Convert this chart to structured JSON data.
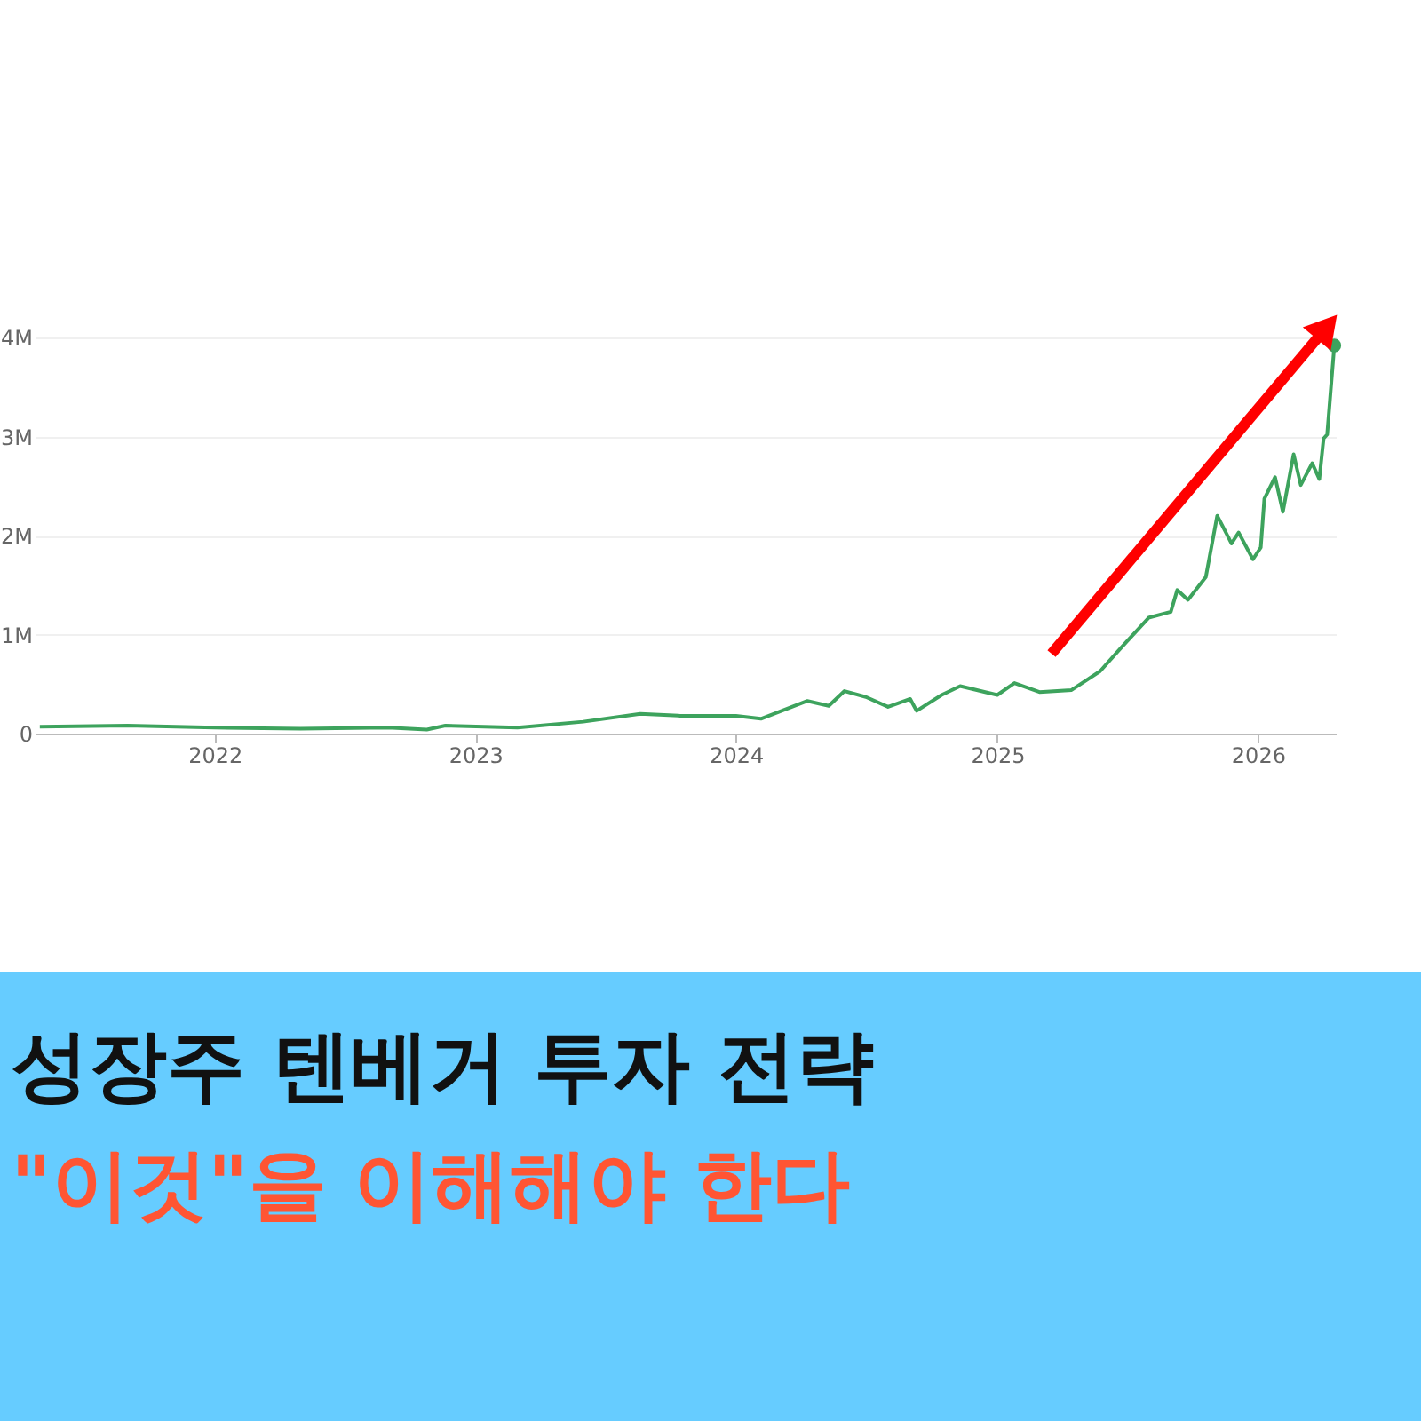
{
  "chart_data": {
    "type": "line",
    "title": "성장주 텐베거 투자 전략",
    "subtitle": "\"이것\"을 이해해야 한다",
    "xlim": [
      "2021-04-25",
      "2026-04-20"
    ],
    "xticks": [
      "2022",
      "2023",
      "2024",
      "2025",
      "2026"
    ],
    "ylim": [
      0,
      4000000
    ],
    "yticks": [
      0,
      {
        "value": 1000000,
        "label": "1M"
      },
      {
        "value": 2000000,
        "label": "2M"
      },
      {
        "value": 3000000,
        "label": "3M"
      },
      {
        "value": 4000000,
        "label": "4M"
      }
    ],
    "grid": "y",
    "series": [
      {
        "color": "#3da35d",
        "marker": "none",
        "x": [
          "2021-05-01",
          "2021-09-01",
          "2022-01-01",
          "2022-05-01",
          "2022-09-01",
          "2022-10-25",
          "2022-11-20",
          "2023-03-01",
          "2023-06-01",
          "2023-08-20",
          "2023-10-15",
          "2024-01-01",
          "2024-02-05",
          "2024-04-10",
          "2024-05-10",
          "2024-06-01",
          "2024-07-01",
          "2024-08-01",
          "2024-09-01",
          "2024-09-10",
          "2024-10-15",
          "2024-11-10",
          "2025-01-01",
          "2025-01-25",
          "2025-03-01",
          "2025-04-15",
          "2025-05-25",
          "2025-06-20",
          "2025-08-01",
          "2025-09-01",
          "2025-09-10",
          "2025-09-25",
          "2025-10-20",
          "2025-11-05",
          "2025-11-25",
          "2025-12-05",
          "2025-12-25",
          "2026-01-05",
          "2026-01-10",
          "2026-01-25",
          "2026-02-05",
          "2026-02-20",
          "2026-03-02",
          "2026-03-18",
          "2026-03-28",
          "2026-04-03",
          "2026-04-08",
          "2026-04-18"
        ],
        "values": [
          70000,
          80000,
          60000,
          50000,
          60000,
          40000,
          80000,
          60000,
          120000,
          200000,
          180000,
          180000,
          150000,
          330000,
          280000,
          430000,
          370000,
          270000,
          350000,
          230000,
          390000,
          480000,
          390000,
          510000,
          420000,
          440000,
          630000,
          840000,
          1170000,
          1230000,
          1450000,
          1350000,
          1580000,
          2200000,
          1920000,
          2030000,
          1760000,
          1880000,
          2370000,
          2590000,
          2240000,
          2820000,
          2510000,
          2730000,
          2570000,
          2980000,
          3020000,
          3920000
        ]
      },
      {
        "type": "scatter",
        "color": "#3da35d",
        "marker": "circle",
        "x": [
          "2026-04-18"
        ],
        "values": [
          3920000
        ]
      }
    ]
  }
}
